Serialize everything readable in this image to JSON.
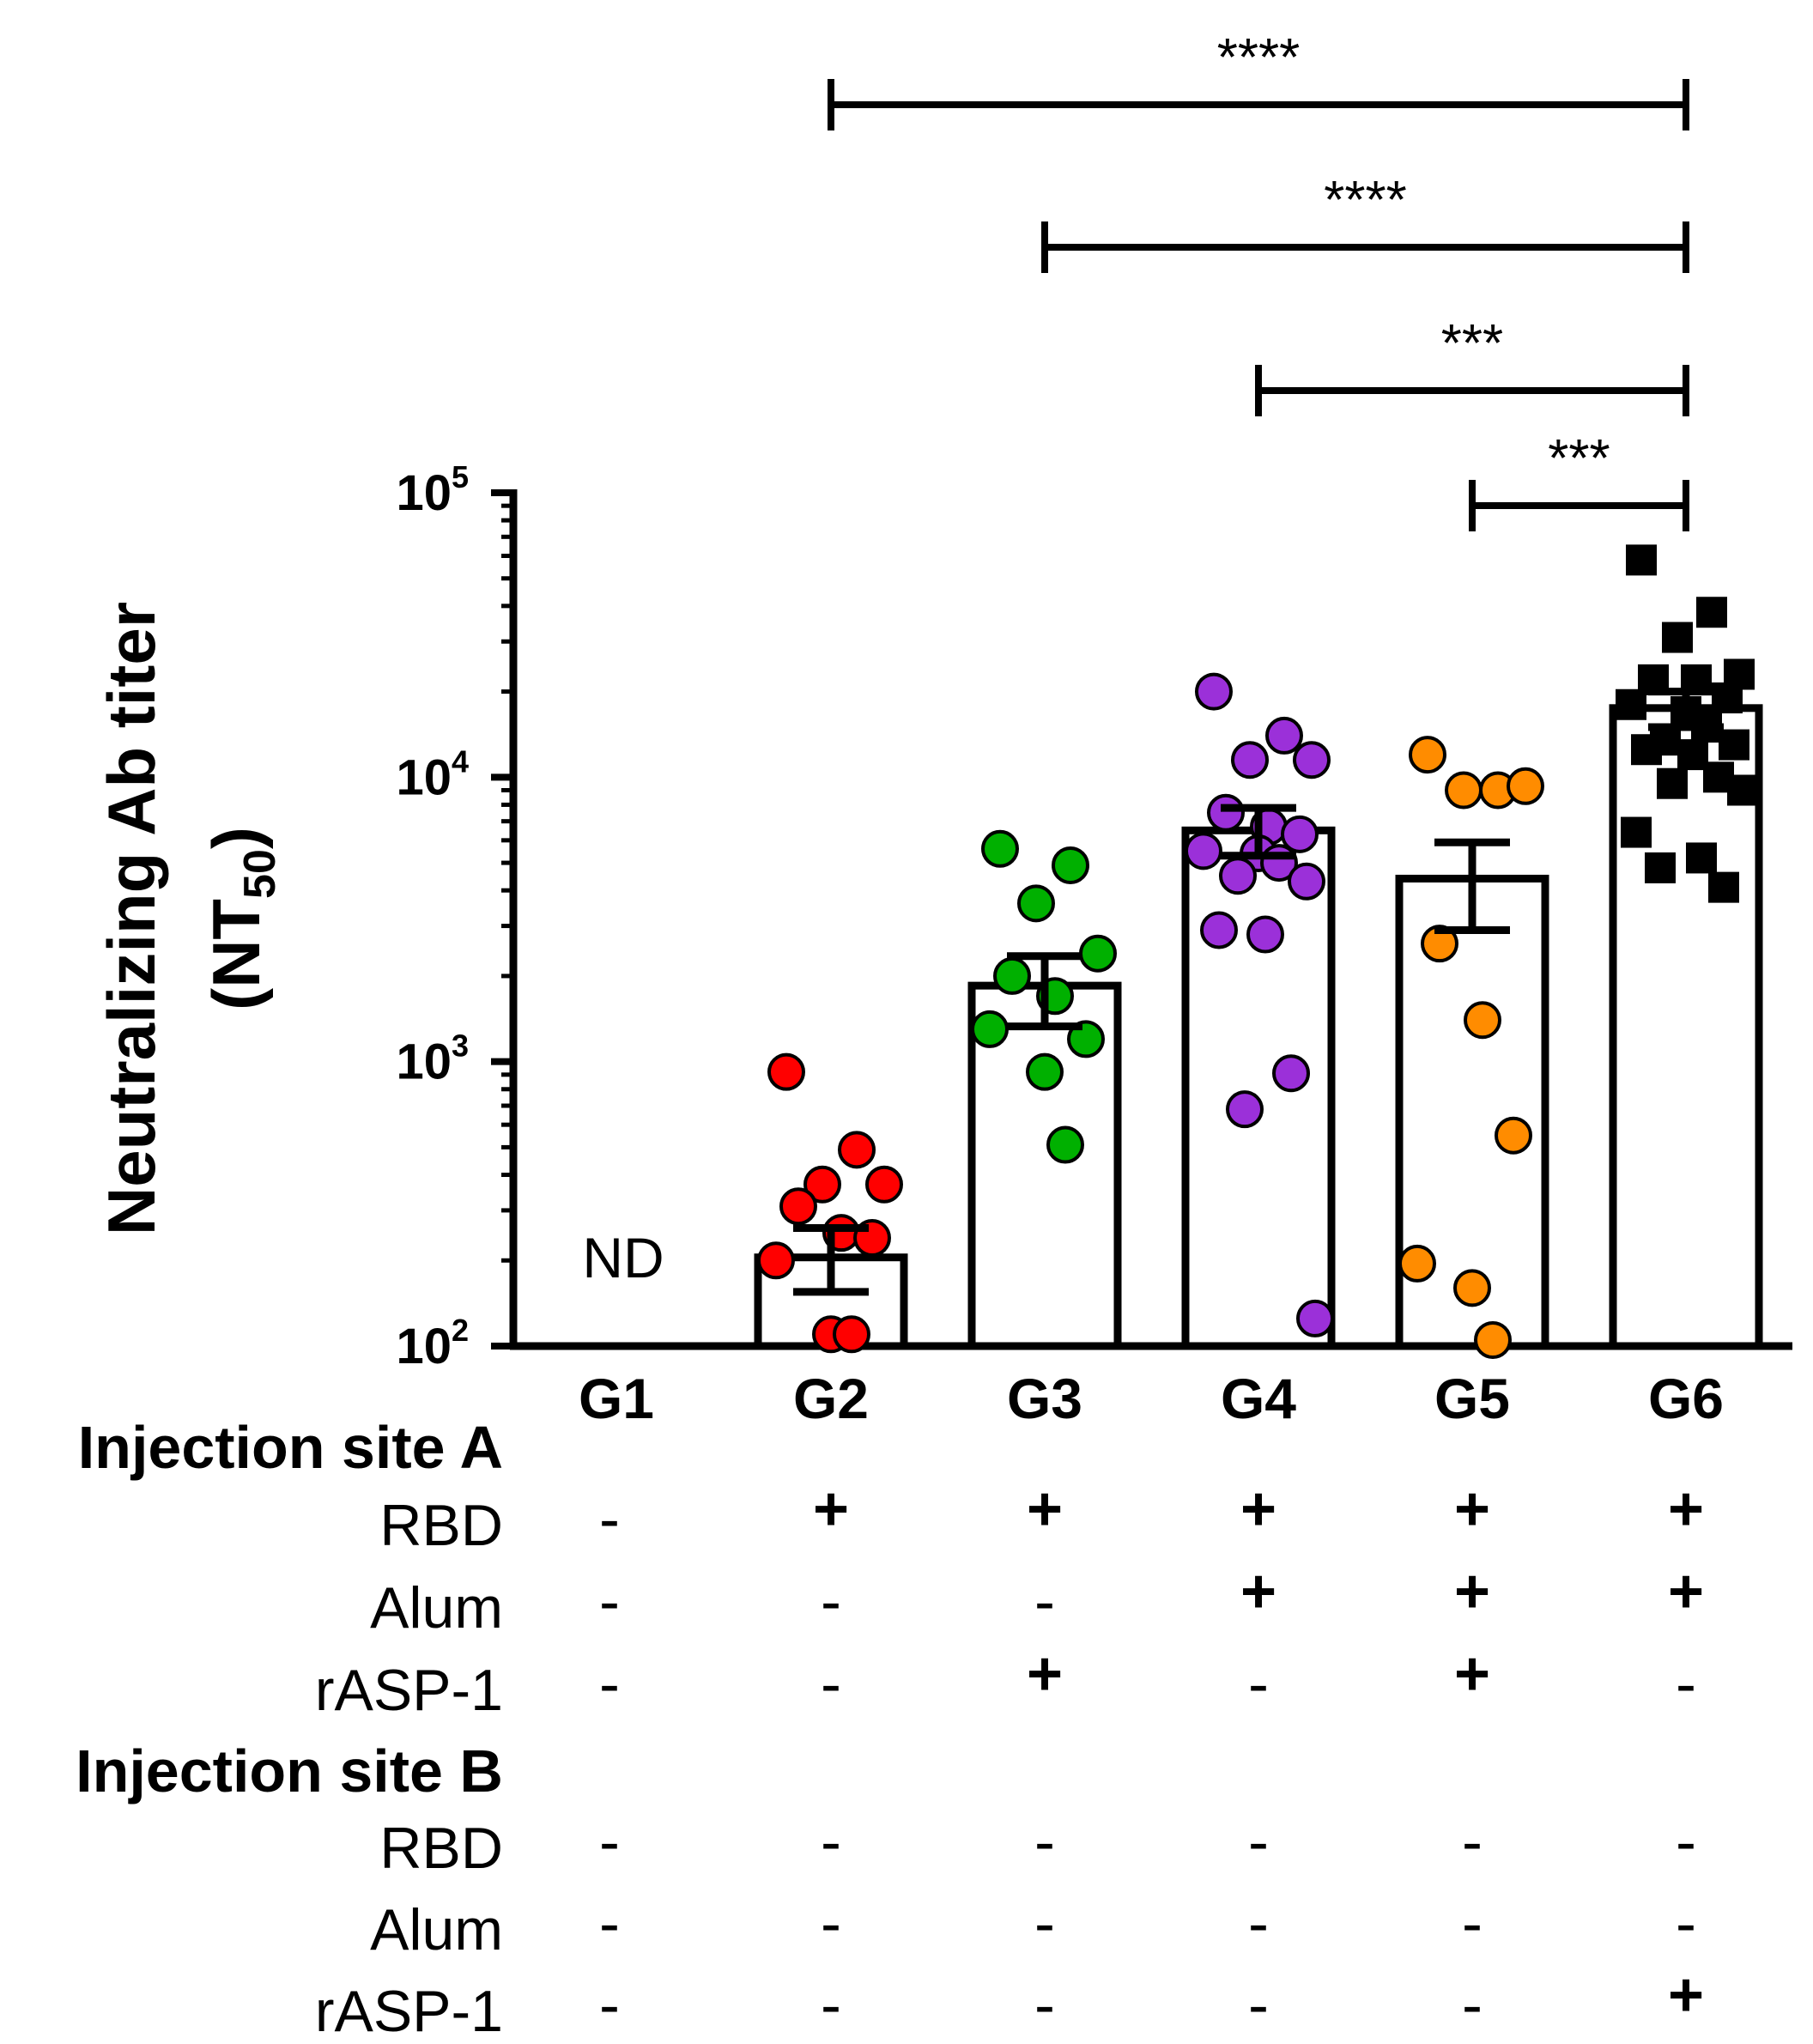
{
  "chart_data": {
    "type": "bar",
    "scale": "log",
    "ylim": [
      100,
      100000
    ],
    "ylabel": "Neutralizing Ab titer",
    "ylabel_line2": "(NT50)",
    "ylabel_main": "(NT",
    "ylabel_sub": "50",
    "ylabel_close": ")",
    "y_ticks": [
      {
        "base": "10",
        "exp": "2",
        "value": 100
      },
      {
        "base": "10",
        "exp": "3",
        "value": 1000
      },
      {
        "base": "10",
        "exp": "4",
        "value": 10000
      },
      {
        "base": "10",
        "exp": "5",
        "value": 100000
      }
    ],
    "categories": [
      "G1",
      "G2",
      "G3",
      "G4",
      "G5",
      "G6"
    ],
    "nd_label": "ND",
    "groups": [
      {
        "name": "G1",
        "mean": null,
        "sem_low": null,
        "sem_high": null,
        "color": "#000000",
        "marker": "circle",
        "points": []
      },
      {
        "name": "G2",
        "mean": 205,
        "sem_low": 155,
        "sem_high": 260,
        "color": "#ff0000",
        "marker": "circle",
        "points": [
          920,
          490,
          370,
          370,
          310,
          250,
          240,
          200,
          110,
          110
        ]
      },
      {
        "name": "G3",
        "mean": 1850,
        "sem_low": 1330,
        "sem_high": 2350,
        "color": "#00b000",
        "marker": "circle",
        "points": [
          5600,
          4900,
          3600,
          2400,
          2000,
          1700,
          1200,
          1300,
          920,
          510
        ]
      },
      {
        "name": "G4",
        "mean": 6500,
        "sem_low": 5300,
        "sem_high": 7800,
        "color": "#9b30d9",
        "marker": "circle",
        "points": [
          20000,
          14000,
          11500,
          11500,
          7500,
          6700,
          6300,
          5500,
          5400,
          5000,
          4500,
          4300,
          2900,
          2800,
          910,
          680,
          125
        ]
      },
      {
        "name": "G5",
        "mean": 4400,
        "sem_low": 2900,
        "sem_high": 5900,
        "color": "#ff8c00",
        "marker": "circle",
        "points": [
          12000,
          9000,
          9000,
          9300,
          2600,
          1400,
          550,
          195,
          160,
          105
        ]
      },
      {
        "name": "G6",
        "mean": 17500,
        "sem_low": 15000,
        "sem_high": 20000,
        "color": "#000000",
        "marker": "square",
        "points": [
          58000,
          38000,
          31000,
          23000,
          22000,
          22000,
          19000,
          18000,
          17000,
          15000,
          13500,
          13000,
          12500,
          12000,
          10000,
          9500,
          9000,
          6400,
          5200,
          4800,
          4100
        ]
      }
    ],
    "significance": [
      {
        "from": "G2",
        "to": "G6",
        "label": "****"
      },
      {
        "from": "G3",
        "to": "G6",
        "label": "****"
      },
      {
        "from": "G4",
        "to": "G6",
        "label": "***"
      },
      {
        "from": "G5",
        "to": "G6",
        "label": "***"
      }
    ]
  },
  "table": {
    "sections": [
      {
        "title": "Injection site A",
        "rows": [
          {
            "label": "RBD",
            "values": [
              "-",
              "+",
              "+",
              "+",
              "+",
              "+"
            ]
          },
          {
            "label": "Alum",
            "values": [
              "-",
              "-",
              "-",
              "+",
              "+",
              "+"
            ]
          },
          {
            "label": "rASP-1",
            "values": [
              "-",
              "-",
              "+",
              "-",
              "+",
              "-"
            ]
          }
        ]
      },
      {
        "title": "Injection site B",
        "rows": [
          {
            "label": "RBD",
            "values": [
              "-",
              "-",
              "-",
              "-",
              "-",
              "-"
            ]
          },
          {
            "label": "Alum",
            "values": [
              "-",
              "-",
              "-",
              "-",
              "-",
              "-"
            ]
          },
          {
            "label": "rASP-1",
            "values": [
              "-",
              "-",
              "-",
              "-",
              "-",
              "+"
            ]
          }
        ]
      }
    ]
  }
}
